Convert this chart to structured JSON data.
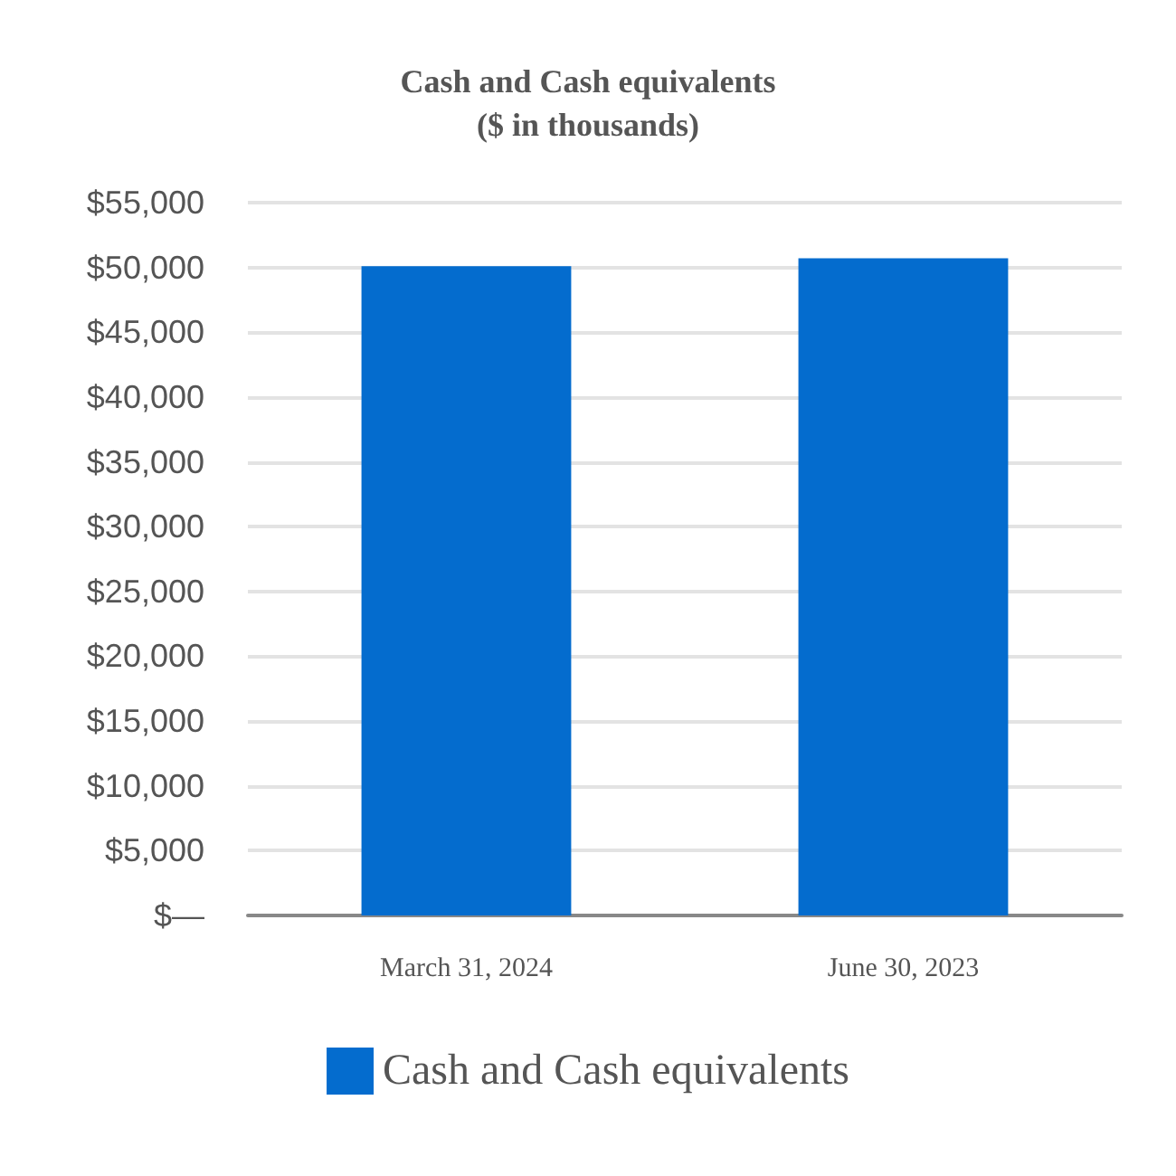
{
  "chart_data": {
    "type": "bar",
    "title": "Cash and Cash equivalents\n($ in thousands)",
    "categories": [
      "March 31, 2024",
      "June 30, 2023"
    ],
    "series": [
      {
        "name": "Cash and Cash equivalents",
        "color": "#046cce",
        "values": [
          50100,
          50700
        ]
      }
    ],
    "ylim": [
      0,
      55000
    ],
    "yticks": [
      {
        "value": 0,
        "label": "$—"
      },
      {
        "value": 5000,
        "label": "$5,000"
      },
      {
        "value": 10000,
        "label": "$10,000"
      },
      {
        "value": 15000,
        "label": "$15,000"
      },
      {
        "value": 20000,
        "label": "$20,000"
      },
      {
        "value": 25000,
        "label": "$25,000"
      },
      {
        "value": 30000,
        "label": "$30,000"
      },
      {
        "value": 35000,
        "label": "$35,000"
      },
      {
        "value": 40000,
        "label": "$40,000"
      },
      {
        "value": 45000,
        "label": "$45,000"
      },
      {
        "value": 50000,
        "label": "$50,000"
      },
      {
        "value": 55000,
        "label": "$55,000"
      }
    ],
    "grid": "y",
    "legend": "bottom"
  }
}
